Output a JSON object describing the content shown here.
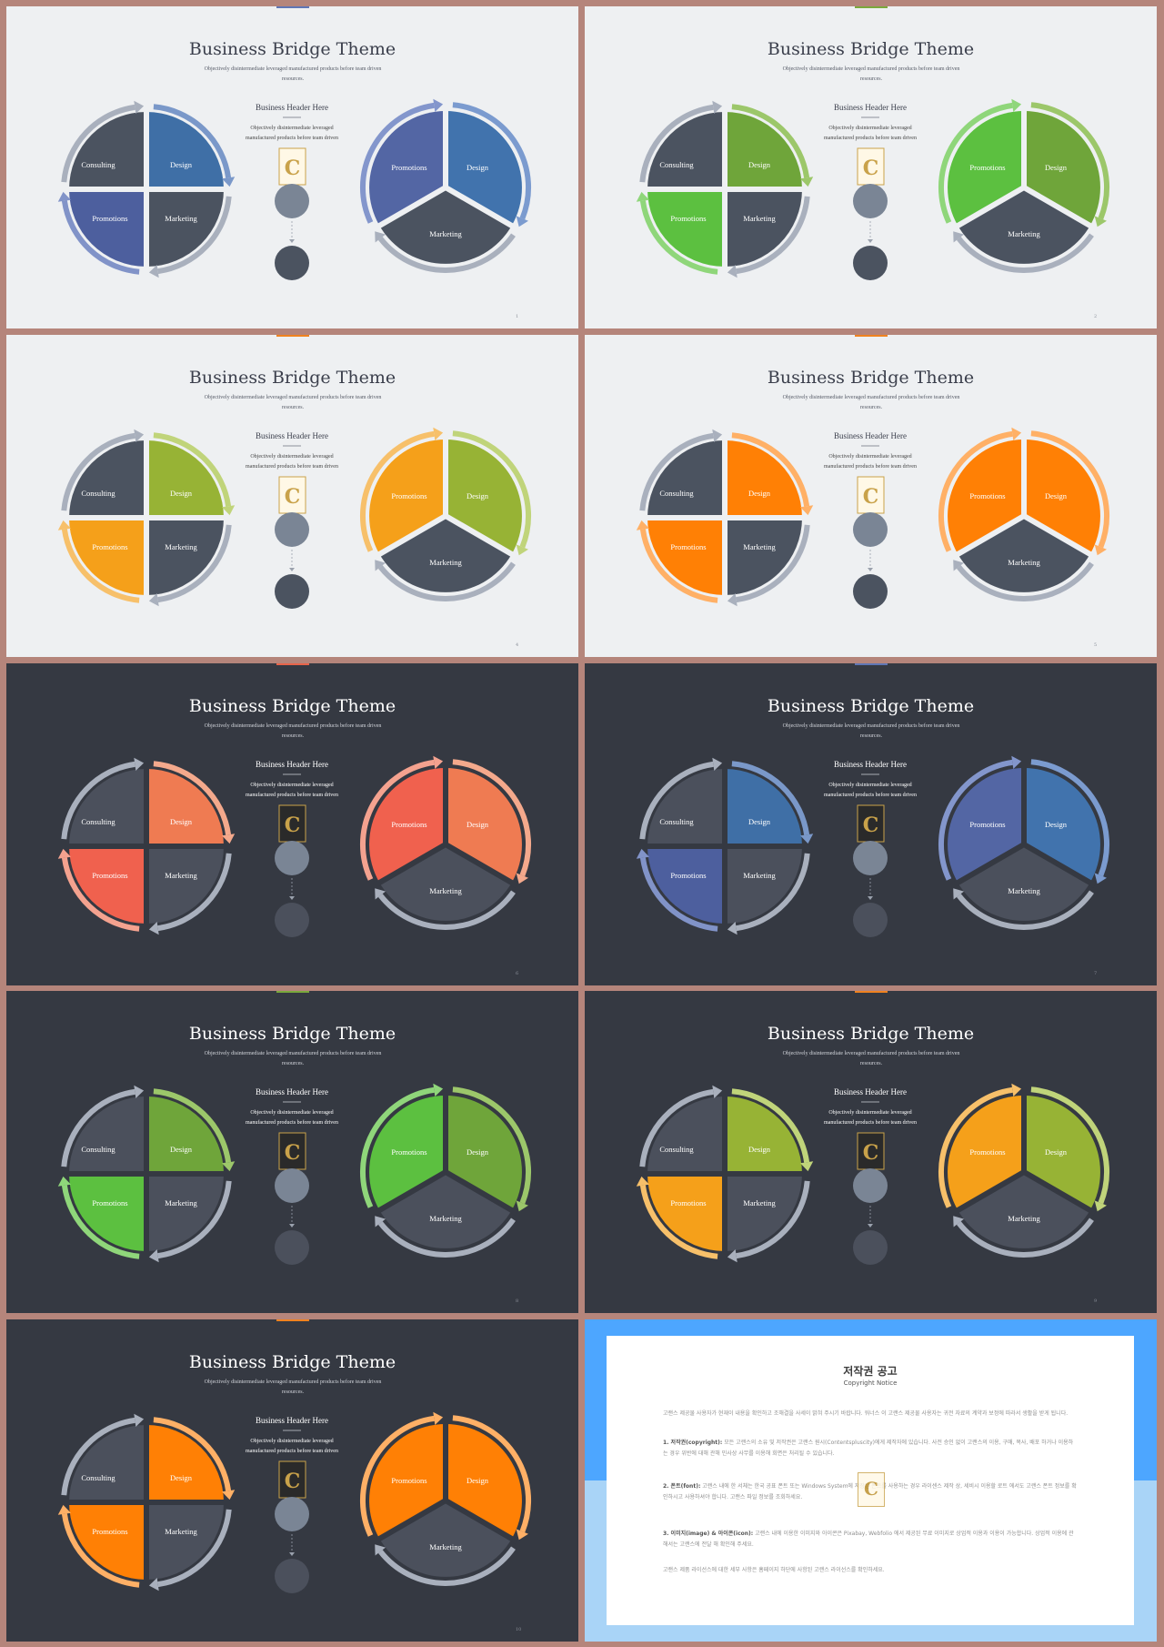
{
  "slides": [
    {
      "variant": "light",
      "page": "1",
      "accent": "#5f76b5",
      "colors": {
        "design": "#3f6fa6",
        "promo": "#4d5f9e",
        "arrow_design": "#7a98c9",
        "arrow_promo": "#8193c8",
        "side_promo": "#5366a4",
        "side_design": "#4173ad",
        "side_arrow_promo": "#8396cc",
        "side_arrow_design": "#7b9bcf"
      }
    },
    {
      "variant": "light",
      "page": "2",
      "accent": "#7aa83c",
      "colors": {
        "design": "#6fa53a",
        "promo": "#5cc040",
        "arrow_design": "#9cc76a",
        "arrow_promo": "#8fd67a",
        "side_promo": "#5cc040",
        "side_design": "#6fa53a",
        "side_arrow_promo": "#8fd67a",
        "side_arrow_design": "#9cc76a"
      }
    },
    {
      "variant": "light",
      "page": "4",
      "accent": "#f0821f",
      "colors": {
        "design": "#97b335",
        "promo": "#f5a01a",
        "arrow_design": "#c0d47a",
        "arrow_promo": "#f7c06a",
        "side_promo": "#f5a01a",
        "side_design": "#97b335",
        "side_arrow_promo": "#f7c06a",
        "side_arrow_design": "#c0d47a"
      }
    },
    {
      "variant": "light",
      "page": "5",
      "accent": "#f0821f",
      "colors": {
        "design": "#ff8005",
        "promo": "#ff8005",
        "arrow_design": "#ffb066",
        "arrow_promo": "#ffb066",
        "side_promo": "#ff8005",
        "side_design": "#ff8005",
        "side_arrow_promo": "#ffb066",
        "side_arrow_design": "#ffb066"
      }
    },
    {
      "variant": "dark",
      "page": "6",
      "accent": "#e8644a",
      "colors": {
        "design": "#ef7b52",
        "promo": "#f0614e",
        "arrow_design": "#f4a98c",
        "arrow_promo": "#f4a28f",
        "side_promo": "#f0614e",
        "side_design": "#ef7b52",
        "side_arrow_promo": "#f4a28f",
        "side_arrow_design": "#f4a98c"
      }
    },
    {
      "variant": "dark",
      "page": "7",
      "accent": "#5f76b5",
      "colors": {
        "design": "#3f6fa6",
        "promo": "#4d5f9e",
        "arrow_design": "#7a98c9",
        "arrow_promo": "#8193c8",
        "side_promo": "#5366a4",
        "side_design": "#4173ad",
        "side_arrow_promo": "#8396cc",
        "side_arrow_design": "#7b9bcf"
      }
    },
    {
      "variant": "dark",
      "page": "8",
      "accent": "#7aa83c",
      "colors": {
        "design": "#6fa53a",
        "promo": "#5cc040",
        "arrow_design": "#9cc76a",
        "arrow_promo": "#8fd67a",
        "side_promo": "#5cc040",
        "side_design": "#6fa53a",
        "side_arrow_promo": "#8fd67a",
        "side_arrow_design": "#9cc76a"
      }
    },
    {
      "variant": "dark",
      "page": "9",
      "accent": "#f0821f",
      "colors": {
        "design": "#97b335",
        "promo": "#f5a01a",
        "arrow_design": "#c0d47a",
        "arrow_promo": "#f7c06a",
        "side_promo": "#f5a01a",
        "side_design": "#97b335",
        "side_arrow_promo": "#f7c06a",
        "side_arrow_design": "#c0d47a"
      }
    },
    {
      "variant": "dark",
      "page": "10",
      "accent": "#f0821f",
      "colors": {
        "design": "#ff8005",
        "promo": "#ff8005",
        "arrow_design": "#ffb066",
        "arrow_promo": "#ffb066",
        "side_promo": "#ff8005",
        "side_design": "#ff8005",
        "side_arrow_promo": "#ffb066",
        "side_arrow_design": "#ffb066"
      }
    }
  ],
  "texts": {
    "title": "Business Bridge Theme",
    "subtitle": "Objectively disintermediate leveraged manufactured products before team driven resources.",
    "header": "Business Header Here",
    "body_line1": "Objectively disintermediate leveraged",
    "body_line2": "manufactured products before team driven",
    "labels": {
      "consulting": "Consulting",
      "design": "Design",
      "promotions": "Promotions",
      "marketing": "Marketing"
    }
  },
  "base_colors": {
    "neutral_light": "#4b5360",
    "neutral_dark": "#4b505c",
    "grey_arrow": "#a9b0bd",
    "circle_top": "#7a8595",
    "circle_bottom_light": "#4b5360",
    "circle_bottom_dark": "#4b505c"
  },
  "notice": {
    "title": "저작권 공고",
    "subtitle": "Copyright Notice",
    "p1": "고랜스 제공물 사용자가 현재이 내용을 확인하고 조해결을 사세이 밝혀 주시기 바랍니다. 워너스 이 고랜스 제공물 사용자는 귀전 자료의 계약과 보정에 따라서 생활을 받게 됩니다.",
    "p2_bold": "1. 저작권(copyright):",
    "p2": " 모든 고랜스의 소유 및 저작권은 고랜스 원시(Contentspluscity)에게 제작자에 있습니다. 사전 승인 없이 고랜스의 이용, 구매, 복사, 배포 하거나 이용하는 경우 위반에 대해 관해 민사상 사무를 이용해 회면은 처리될 수 있습니다.",
    "p3_bold": "2. 폰트(font):",
    "p3": " 고랜스 내에 한 서체는 한국 공표 폰트 또는 Windows System에 저장된 폰트를 사용하는 경우 라이센스 제작 상, 세비시 이용할 로트 에서도 고랜스 폰트 정보를 확인하시고 사용하셔야 합니다. 고랜스 파일 정보를 조회하세요.",
    "p4_bold": "3. 이미지(image) & 아이콘(icon):",
    "p4": " 고랜스 내에 이용한 이미지와 아이콘은 Pixabay, Webfolio 에서 제공된 무료 이미지로 상업적 이용과 이용이 가능합니다. 상업적 이용에 관해서는 고랜스에 전달 해 확인해 주세요.",
    "p5": "고랜스 제품 라이선스에 대한 세부 사항은 홈페이지 하단에 사항된 고랜스 라이선스를 확인하세요."
  }
}
